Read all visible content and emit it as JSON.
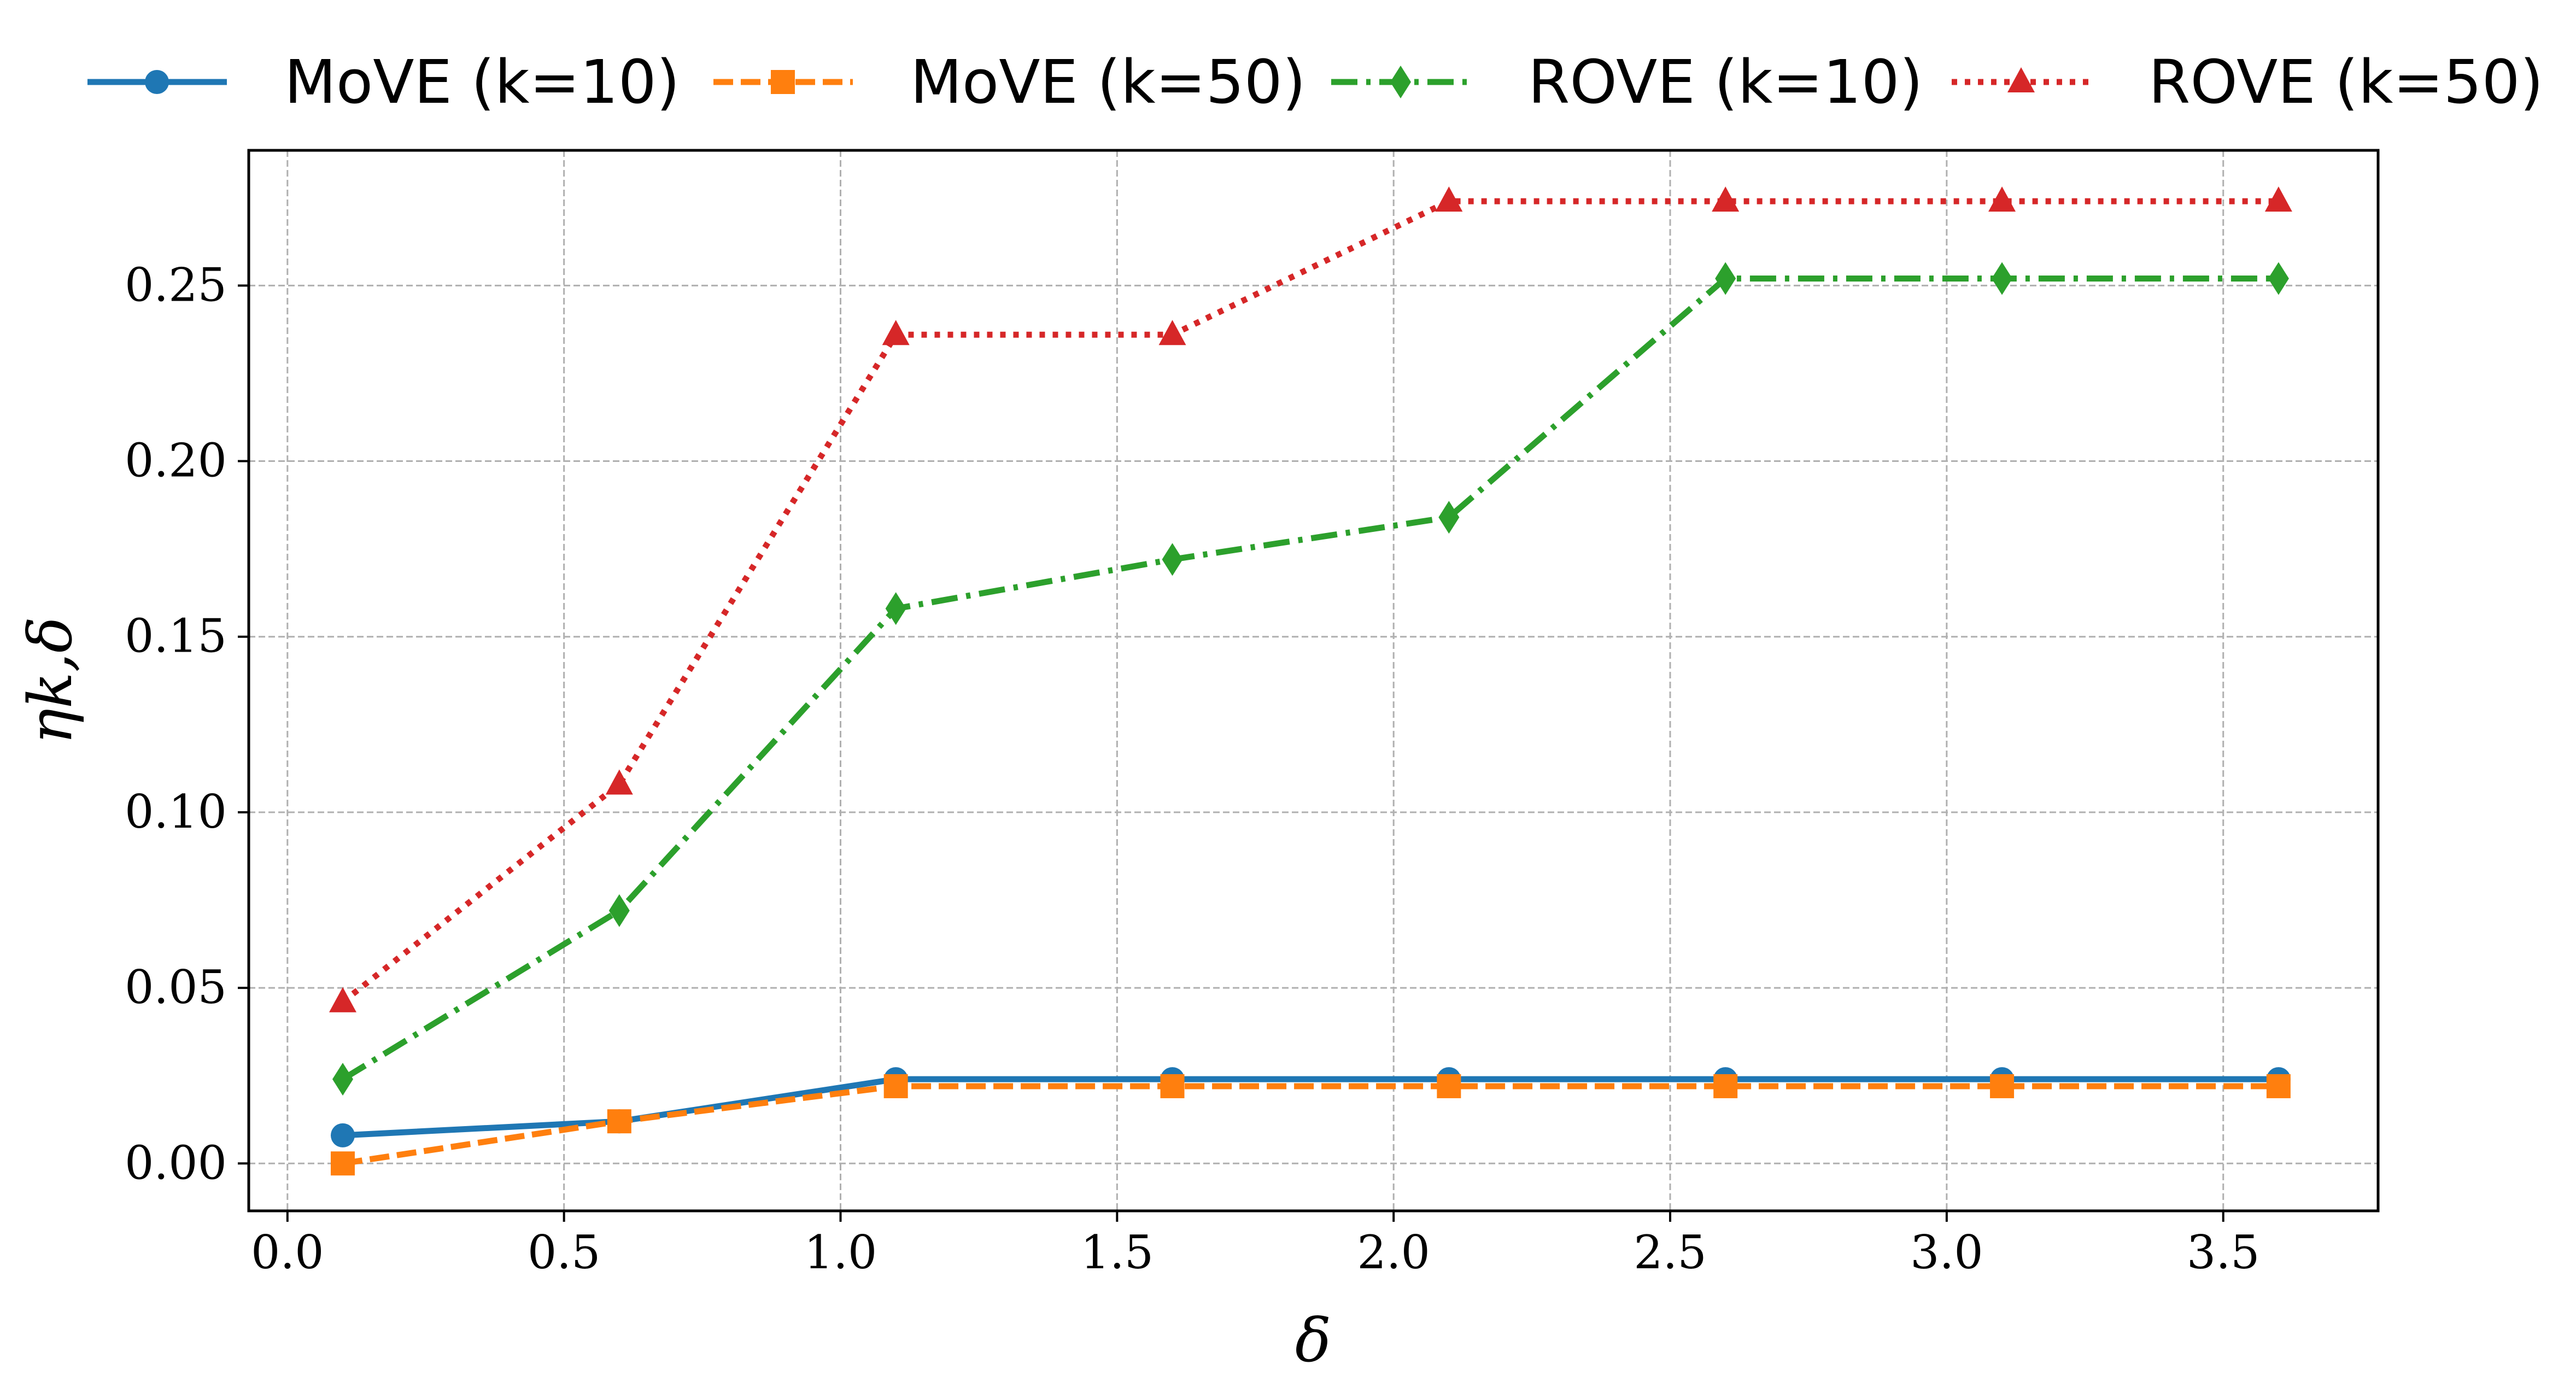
{
  "chart_data": {
    "type": "line",
    "title": "",
    "xlabel": "δ",
    "ylabel": "ηk,δ",
    "xlim": [
      -0.07,
      3.78
    ],
    "ylim": [
      -0.0135,
      0.2885
    ],
    "xticks": [
      0.0,
      0.5,
      1.0,
      1.5,
      2.0,
      2.5,
      3.0,
      3.5
    ],
    "xtick_labels": [
      "0.0",
      "0.5",
      "1.0",
      "1.5",
      "2.0",
      "2.5",
      "3.0",
      "3.5"
    ],
    "yticks": [
      0.0,
      0.05,
      0.1,
      0.15,
      0.2,
      0.25
    ],
    "ytick_labels": [
      "0.00",
      "0.05",
      "0.10",
      "0.15",
      "0.20",
      "0.25"
    ],
    "grid": true,
    "legend_position": "top",
    "x": [
      0.1,
      0.6,
      1.1,
      1.6,
      2.1,
      2.6,
      3.1,
      3.6
    ],
    "series": [
      {
        "name": "MoVE (k=10)",
        "color": "#1f77b4",
        "marker": "circle",
        "linestyle": "solid",
        "values": [
          0.008,
          0.012,
          0.024,
          0.024,
          0.024,
          0.024,
          0.024,
          0.024
        ]
      },
      {
        "name": "MoVE (k=50)",
        "color": "#ff7f0e",
        "marker": "square",
        "linestyle": "dashed",
        "values": [
          0.0,
          0.012,
          0.022,
          0.022,
          0.022,
          0.022,
          0.022,
          0.022
        ]
      },
      {
        "name": "ROVE (k=10)",
        "color": "#2ca02c",
        "marker": "diamond",
        "linestyle": "dashdot",
        "values": [
          0.024,
          0.072,
          0.158,
          0.172,
          0.184,
          0.252,
          0.252,
          0.252
        ]
      },
      {
        "name": "ROVE (k=50)",
        "color": "#d62728",
        "marker": "triangle",
        "linestyle": "dotted",
        "values": [
          0.046,
          0.108,
          0.236,
          0.236,
          0.274,
          0.274,
          0.274,
          0.274
        ]
      }
    ]
  }
}
